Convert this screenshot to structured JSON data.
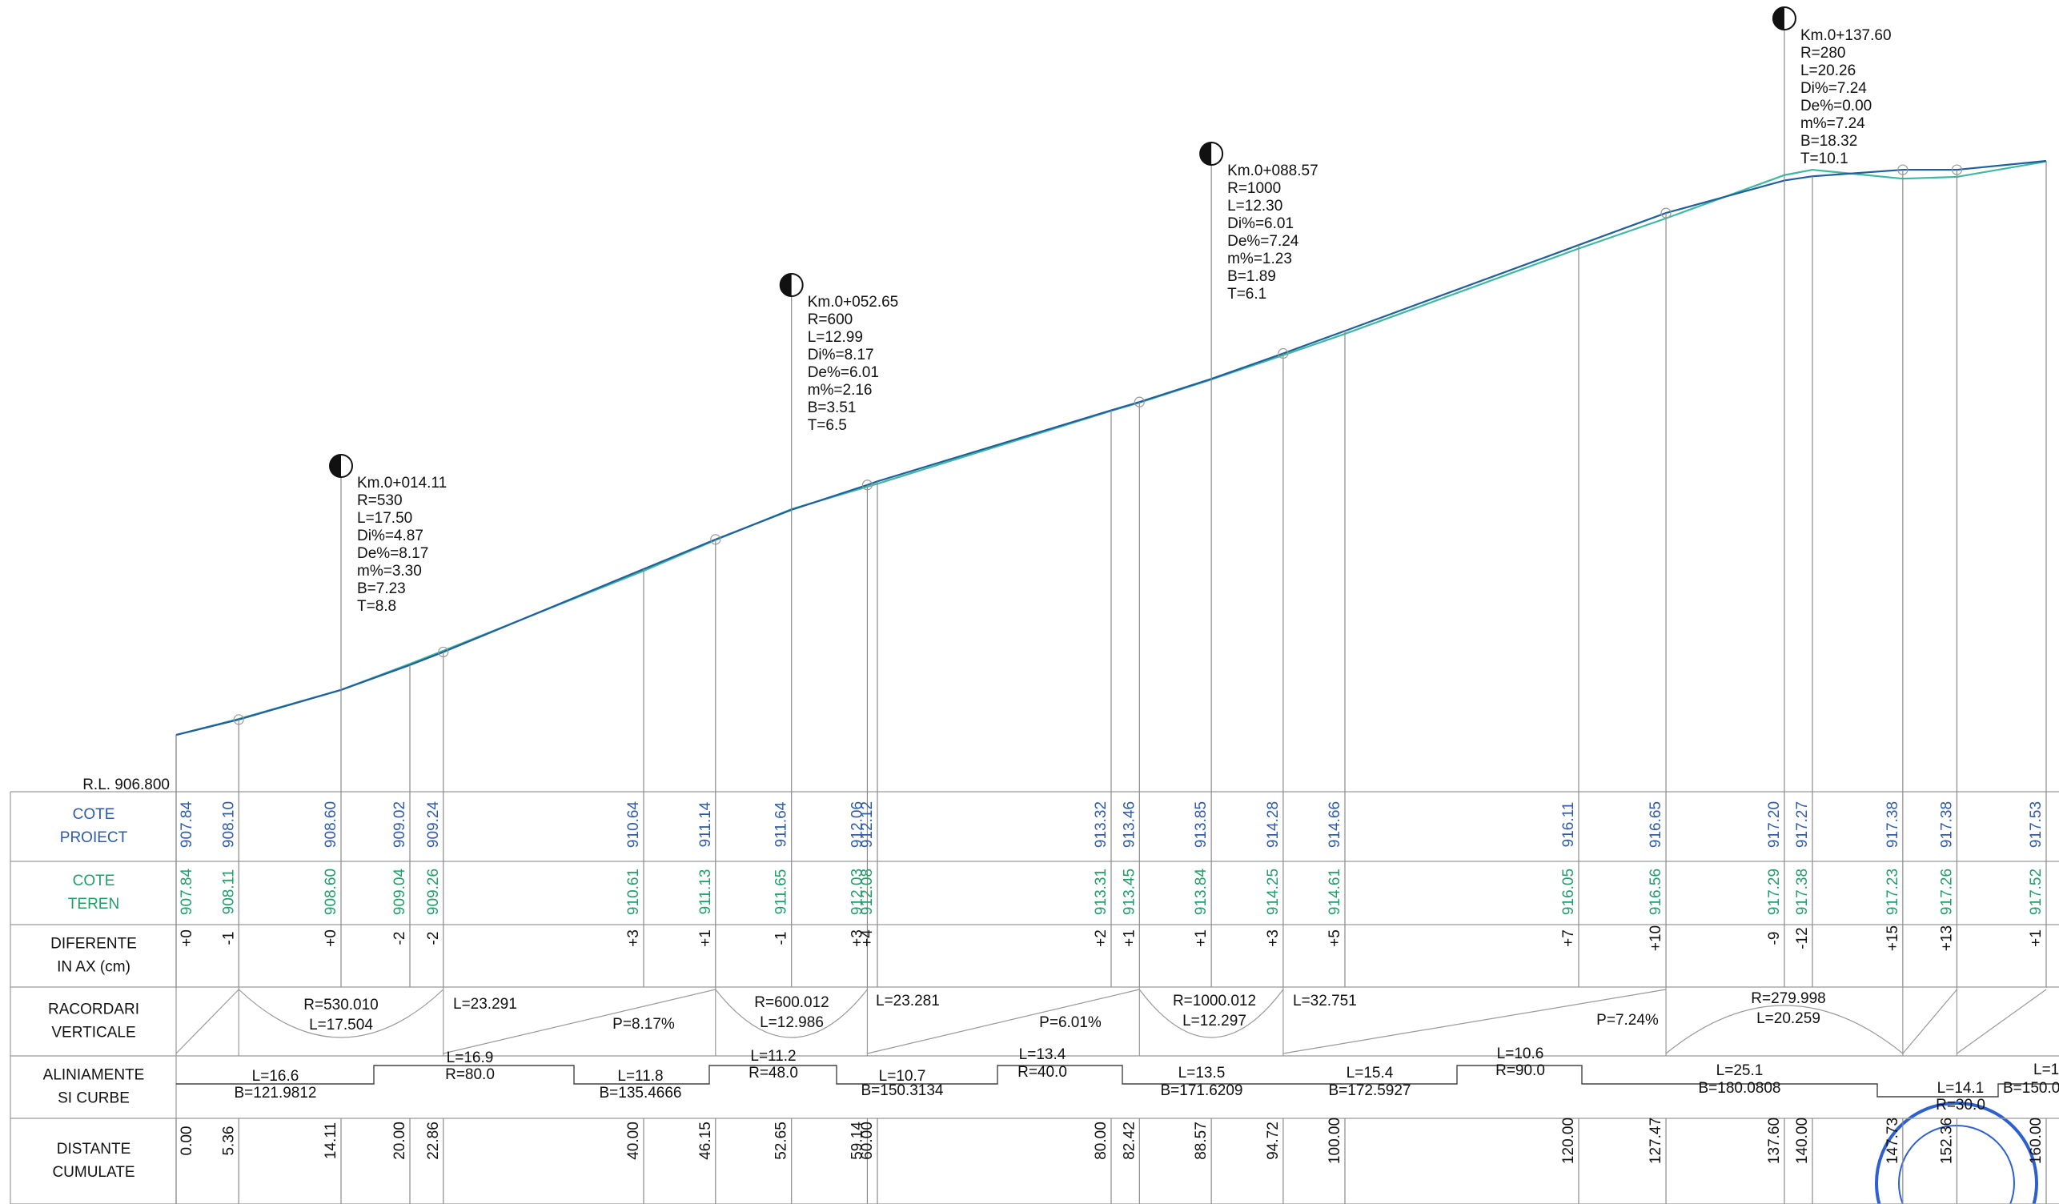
{
  "reference_level": "R.L. 906.800",
  "row_labels": [
    [
      "COTE",
      "PROIECT"
    ],
    [
      "COTE",
      "TEREN"
    ],
    [
      "DIFERENTE",
      "IN AX (cm)"
    ],
    [
      "RACORDARI",
      "VERTICALE"
    ],
    [
      "ALINIAMENTE",
      "SI CURBE"
    ],
    [
      "DISTANTE",
      "CUMULATE"
    ]
  ],
  "stations": {
    "distance": [
      "0.00",
      "5.36",
      "14.11",
      "20.00",
      "22.86",
      "40.00",
      "46.15",
      "52.65",
      "59.14",
      "60.00",
      "80.00",
      "82.42",
      "88.57",
      "94.72",
      "100.00",
      "120.00",
      "127.47",
      "137.60",
      "140.00",
      "147.73",
      "152.36",
      "160.00"
    ],
    "proiect": [
      "907.84",
      "908.10",
      "908.60",
      "909.02",
      "909.24",
      "910.64",
      "911.14",
      "911.64",
      "912.06",
      "912.12",
      "913.32",
      "913.46",
      "913.85",
      "914.28",
      "914.66",
      "916.11",
      "916.65",
      "917.20",
      "917.27",
      "917.38",
      "917.38",
      "917.53"
    ],
    "teren": [
      "907.84",
      "908.11",
      "908.60",
      "909.04",
      "909.26",
      "910.61",
      "911.13",
      "911.65",
      "912.03",
      "912.08",
      "913.31",
      "913.45",
      "913.84",
      "914.25",
      "914.61",
      "916.05",
      "916.56",
      "917.29",
      "917.38",
      "917.23",
      "917.26",
      "917.52"
    ],
    "diff": [
      "+0",
      "-1",
      "+0",
      "-2",
      "-2",
      "+3",
      "+1",
      "-1",
      "+3",
      "+4",
      "+2",
      "+1",
      "+1",
      "+3",
      "+5",
      "+7",
      "+10",
      "-9",
      "-12",
      "+15",
      "+13",
      "+1"
    ]
  },
  "vertical_curves": [
    [
      "Km.0+014.11",
      "R=530",
      "L=17.50",
      "Di%=4.87",
      "De%=8.17",
      "m%=3.30",
      "B=7.23",
      "T=8.8"
    ],
    [
      "Km.0+052.65",
      "R=600",
      "L=12.99",
      "Di%=8.17",
      "De%=6.01",
      "m%=2.16",
      "B=3.51",
      "T=6.5"
    ],
    [
      "Km.0+088.57",
      "R=1000",
      "L=12.30",
      "Di%=6.01",
      "De%=7.24",
      "m%=1.23",
      "B=1.89",
      "T=6.1"
    ],
    [
      "Km.0+137.60",
      "R=280",
      "L=20.26",
      "Di%=7.24",
      "De%=0.00",
      "m%=7.24",
      "B=18.32",
      "T=10.1"
    ]
  ],
  "racordari": [
    "R=530.010",
    "L=17.504",
    "L=23.291",
    "P=8.17%",
    "R=600.012",
    "L=12.986",
    "L=23.281",
    "P=6.01%",
    "R=1000.012",
    "L=12.297",
    "L=32.751",
    "P=7.24%",
    "R=279.998",
    "L=20.259"
  ],
  "aliniamente": [
    "L=16.6",
    "B=121.9812",
    "L=16.9",
    "R=80.0",
    "L=11.8",
    "B=135.4666",
    "L=11.2",
    "R=48.0",
    "L=10.7",
    "B=150.3134",
    "L=13.4",
    "R=40.0",
    "L=13.5",
    "B=171.6209",
    "L=15.4",
    "B=172.5927",
    "L=10.6",
    "R=90.0",
    "L=25.1",
    "B=180.0808",
    "L=14.1",
    "R=30.0",
    "L=1.",
    "B=150.0"
  ]
}
